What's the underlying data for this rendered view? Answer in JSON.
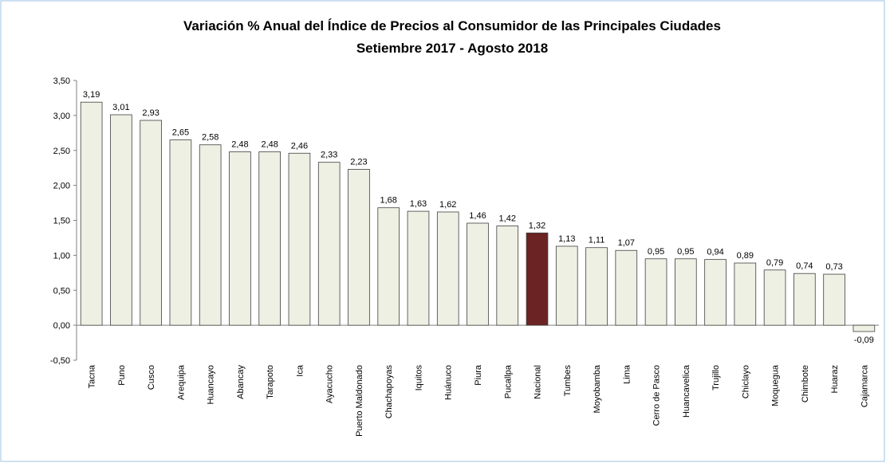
{
  "chart_data": {
    "type": "bar",
    "title": "Variación % Anual del Índice de Precios al Consumidor de las Principales Ciudades",
    "subtitle": "Setiembre 2017 - Agosto 2018",
    "categories": [
      "Tacna",
      "Puno",
      "Cusco",
      "Arequipa",
      "Huancayo",
      "Abancay",
      "Tarapoto",
      "Ica",
      "Ayacucho",
      "Puerto Maldonado",
      "Chachapoyas",
      "Iquitos",
      "Huánuco",
      "Piura",
      "Pucallpa",
      "Nacional",
      "Tumbes",
      "Moyobamba",
      "Lima",
      "Cerro de Pasco",
      "Huancavelica",
      "Trujillo",
      "Chiclayo",
      "Moquegua",
      "Chimbote",
      "Huaraz",
      "Cajamarca"
    ],
    "values": [
      3.19,
      3.01,
      2.93,
      2.65,
      2.58,
      2.48,
      2.48,
      2.46,
      2.33,
      2.23,
      1.68,
      1.63,
      1.62,
      1.46,
      1.42,
      1.32,
      1.13,
      1.11,
      1.07,
      0.95,
      0.95,
      0.94,
      0.89,
      0.79,
      0.74,
      0.73,
      -0.09
    ],
    "value_labels": [
      "3,19",
      "3,01",
      "2,93",
      "2,65",
      "2,58",
      "2,48",
      "2,48",
      "2,46",
      "2,33",
      "2,23",
      "1,68",
      "1,63",
      "1,62",
      "1,46",
      "1,42",
      "1,32",
      "1,13",
      "1,11",
      "1,07",
      "0,95",
      "0,95",
      "0,94",
      "0,89",
      "0,79",
      "0,74",
      "0,73",
      "-0,09"
    ],
    "color": "#edf0e2",
    "highlight": {
      "category": "Nacional",
      "color": "#6b2323"
    },
    "ylim": [
      -0.5,
      3.5
    ],
    "yticks": [
      {
        "value": -0.5,
        "label": "-0,50"
      },
      {
        "value": 0,
        "label": "0,00"
      },
      {
        "value": 0.5,
        "label": "0,50"
      },
      {
        "value": 1,
        "label": "1,00"
      },
      {
        "value": 1.5,
        "label": "1,50"
      },
      {
        "value": 2,
        "label": "2,00"
      },
      {
        "value": 2.5,
        "label": "2,50"
      },
      {
        "value": 3,
        "label": "3,00"
      },
      {
        "value": 3.5,
        "label": "3,50"
      }
    ],
    "grid": false
  }
}
